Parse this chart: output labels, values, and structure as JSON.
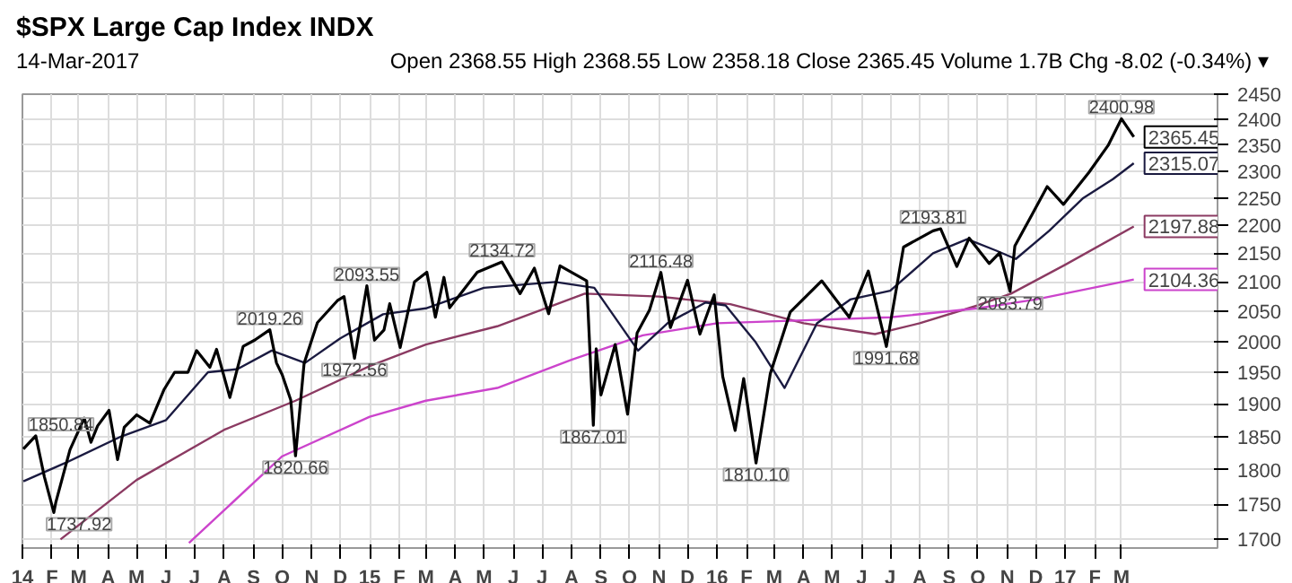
{
  "chart_data": {
    "type": "line",
    "title": "$SPX Large Cap Index INDX",
    "subtitle": "14-Mar-2017",
    "log": "y",
    "grid": true,
    "ylim": [
      1688,
      2450
    ],
    "yticks": [
      1700,
      1750,
      1800,
      1850,
      1900,
      1950,
      2000,
      2050,
      2100,
      2150,
      2200,
      2250,
      2300,
      2350,
      2400,
      2450
    ],
    "xlim": [
      "2014-01-01",
      "2017-06-10"
    ],
    "xticks": [
      {
        "value": "2014-01-01",
        "label": "14"
      },
      {
        "value": "2014-02-01",
        "label": "F"
      },
      {
        "value": "2014-03-01",
        "label": "M"
      },
      {
        "value": "2014-04-01",
        "label": "A"
      },
      {
        "value": "2014-05-01",
        "label": "M"
      },
      {
        "value": "2014-06-01",
        "label": "J"
      },
      {
        "value": "2014-07-01",
        "label": "J"
      },
      {
        "value": "2014-08-01",
        "label": "A"
      },
      {
        "value": "2014-09-01",
        "label": "S"
      },
      {
        "value": "2014-10-01",
        "label": "O"
      },
      {
        "value": "2014-11-01",
        "label": "N"
      },
      {
        "value": "2014-12-01",
        "label": "D"
      },
      {
        "value": "2015-01-01",
        "label": "15"
      },
      {
        "value": "2015-02-01",
        "label": "F"
      },
      {
        "value": "2015-03-01",
        "label": "M"
      },
      {
        "value": "2015-04-01",
        "label": "A"
      },
      {
        "value": "2015-05-01",
        "label": "M"
      },
      {
        "value": "2015-06-01",
        "label": "J"
      },
      {
        "value": "2015-07-01",
        "label": "J"
      },
      {
        "value": "2015-08-01",
        "label": "A"
      },
      {
        "value": "2015-09-01",
        "label": "S"
      },
      {
        "value": "2015-10-01",
        "label": "O"
      },
      {
        "value": "2015-11-01",
        "label": "N"
      },
      {
        "value": "2015-12-01",
        "label": "D"
      },
      {
        "value": "2016-01-01",
        "label": "16"
      },
      {
        "value": "2016-02-01",
        "label": "F"
      },
      {
        "value": "2016-03-01",
        "label": "M"
      },
      {
        "value": "2016-04-01",
        "label": "A"
      },
      {
        "value": "2016-05-01",
        "label": "M"
      },
      {
        "value": "2016-06-01",
        "label": "J"
      },
      {
        "value": "2016-07-01",
        "label": "J"
      },
      {
        "value": "2016-08-01",
        "label": "A"
      },
      {
        "value": "2016-09-01",
        "label": "S"
      },
      {
        "value": "2016-10-01",
        "label": "O"
      },
      {
        "value": "2016-11-01",
        "label": "N"
      },
      {
        "value": "2016-12-01",
        "label": "D"
      },
      {
        "value": "2017-01-01",
        "label": "17"
      },
      {
        "value": "2017-02-01",
        "label": "F"
      },
      {
        "value": "2017-03-01",
        "label": "M"
      }
    ],
    "annotations": [
      "Open 2368.55 High 2368.55 Low 2358.18 Close 2365.45 Volume 1.7B Chg -8.02 (-0.34%) ▾",
      {
        "text": "1850.84",
        "x": "2014-01-15",
        "y": 1850.84
      },
      {
        "text": "1737.92",
        "x": "2014-02-03",
        "y": 1737.92
      },
      {
        "text": "2019.26",
        "x": "2014-09-18",
        "y": 2019.26
      },
      {
        "text": "1820.66",
        "x": "2014-10-15",
        "y": 1820.66
      },
      {
        "text": "1972.56",
        "x": "2014-12-16",
        "y": 1972.56
      },
      {
        "text": "2093.55",
        "x": "2014-12-29",
        "y": 2093.55
      },
      {
        "text": "2134.72",
        "x": "2015-05-20",
        "y": 2134.72
      },
      {
        "text": "1867.01",
        "x": "2015-08-24",
        "y": 1867.01
      },
      {
        "text": "2116.48",
        "x": "2015-11-03",
        "y": 2116.48
      },
      {
        "text": "1810.10",
        "x": "2016-02-11",
        "y": 1810.1
      },
      {
        "text": "1991.68",
        "x": "2016-06-27",
        "y": 1991.68
      },
      {
        "text": "2193.81",
        "x": "2016-08-15",
        "y": 2193.81
      },
      {
        "text": "2083.79",
        "x": "2016-11-04",
        "y": 2083.79
      },
      {
        "text": "2400.98",
        "x": "2017-03-01",
        "y": 2400.98
      },
      {
        "text": "2365.45",
        "x": "2017-03-14",
        "y": 2365.45
      },
      {
        "text": "2315.07",
        "x": "2017-03-14",
        "y": 2315.07
      },
      {
        "text": "2197.88",
        "x": "2017-03-14",
        "y": 2197.88
      },
      {
        "text": "2104.36",
        "x": "2017-03-14",
        "y": 2104.36
      }
    ],
    "series": [
      {
        "color": "#8b3a62",
        "x": [
          "2014-02-10",
          "2014-05-01",
          "2014-08-01",
          "2014-10-15",
          "2015-01-01",
          "2015-03-01",
          "2015-05-15",
          "2015-08-15",
          "2015-11-01",
          "2016-01-15",
          "2016-04-01",
          "2016-06-15",
          "2016-08-01",
          "2016-10-01",
          "2016-11-05",
          "2017-01-01",
          "2017-03-14"
        ],
        "values": [
          1700,
          1785,
          1860,
          1905,
          1960,
          1995,
          2025,
          2080,
          2075,
          2062,
          2030,
          2012,
          2030,
          2060,
          2080,
          2130,
          2197.88
        ]
      },
      {
        "color": "#cc44cc",
        "x": [
          "2014-06-25",
          "2014-10-01",
          "2015-01-01",
          "2015-03-01",
          "2015-05-15",
          "2015-08-01",
          "2015-10-15",
          "2016-01-01",
          "2016-04-01",
          "2016-07-01",
          "2016-10-01",
          "2016-12-01",
          "2017-03-14"
        ],
        "values": [
          1695,
          1820,
          1880,
          1905,
          1925,
          1970,
          2010,
          2030,
          2035,
          2040,
          2055,
          2070,
          2104.36
        ]
      },
      {
        "color": "#1a1a40",
        "x": [
          "2014-01-02",
          "2014-02-15",
          "2014-04-15",
          "2014-06-01",
          "2014-07-15",
          "2014-08-15",
          "2014-09-20",
          "2014-10-25",
          "2014-12-01",
          "2015-01-15",
          "2015-03-01",
          "2015-05-01",
          "2015-07-15",
          "2015-08-25",
          "2015-09-20",
          "2015-10-10",
          "2015-11-10",
          "2015-12-20",
          "2016-01-10",
          "2016-02-10",
          "2016-03-12",
          "2016-04-15",
          "2016-05-20",
          "2016-07-01",
          "2016-08-15",
          "2016-09-20",
          "2016-10-20",
          "2016-11-10",
          "2016-12-15",
          "2017-01-20",
          "2017-02-20",
          "2017-03-14"
        ],
        "values": [
          1783,
          1810,
          1850,
          1875,
          1950,
          1955,
          1985,
          1965,
          2005,
          2045,
          2055,
          2090,
          2100,
          2090,
          2030,
          1985,
          2030,
          2065,
          2060,
          2000,
          1925,
          2030,
          2070,
          2085,
          2150,
          2175,
          2155,
          2140,
          2190,
          2250,
          2285,
          2315.07
        ]
      },
      {
        "color": "#000000",
        "x": [
          "2014-01-02",
          "2014-01-15",
          "2014-01-24",
          "2014-02-03",
          "2014-02-05",
          "2014-02-20",
          "2014-03-07",
          "2014-03-14",
          "2014-03-21",
          "2014-04-02",
          "2014-04-11",
          "2014-04-18",
          "2014-05-01",
          "2014-05-15",
          "2014-05-30",
          "2014-06-10",
          "2014-06-24",
          "2014-07-03",
          "2014-07-17",
          "2014-07-24",
          "2014-08-07",
          "2014-08-21",
          "2014-09-02",
          "2014-09-18",
          "2014-09-25",
          "2014-10-01",
          "2014-10-10",
          "2014-10-15",
          "2014-10-24",
          "2014-11-07",
          "2014-11-28",
          "2014-12-05",
          "2014-12-16",
          "2014-12-29",
          "2015-01-06",
          "2015-01-16",
          "2015-01-22",
          "2015-02-02",
          "2015-02-17",
          "2015-03-02",
          "2015-03-11",
          "2015-03-20",
          "2015-03-26",
          "2015-04-24",
          "2015-05-20",
          "2015-06-08",
          "2015-06-23",
          "2015-07-08",
          "2015-07-20",
          "2015-08-17",
          "2015-08-24",
          "2015-08-27",
          "2015-09-01",
          "2015-09-16",
          "2015-09-29",
          "2015-10-09",
          "2015-10-22",
          "2015-11-03",
          "2015-11-13",
          "2015-12-01",
          "2015-12-14",
          "2015-12-29",
          "2016-01-07",
          "2016-01-20",
          "2016-01-29",
          "2016-02-11",
          "2016-02-26",
          "2016-03-18",
          "2016-04-20",
          "2016-05-19",
          "2016-06-08",
          "2016-06-27",
          "2016-07-15",
          "2016-08-15",
          "2016-08-23",
          "2016-09-09",
          "2016-09-22",
          "2016-10-13",
          "2016-10-24",
          "2016-11-04",
          "2016-11-09",
          "2016-11-25",
          "2016-12-13",
          "2016-12-30",
          "2017-01-26",
          "2017-02-15",
          "2017-03-01",
          "2017-03-14"
        ],
        "values": [
          1831,
          1850.84,
          1790,
          1737.92,
          1752,
          1830,
          1878,
          1841,
          1866,
          1890,
          1815,
          1864,
          1883,
          1870,
          1923,
          1950,
          1950,
          1985,
          1958,
          1987,
          1910,
          1992,
          2002,
          2019.26,
          1965,
          1946,
          1906,
          1820.66,
          1964,
          2031,
          2068,
          2075,
          1972.56,
          2093.55,
          2002,
          2019,
          2063,
          1990,
          2100,
          2117,
          2040,
          2108,
          2056,
          2117,
          2134.72,
          2080,
          2124,
          2046,
          2128,
          2102,
          1867.01,
          1988,
          1914,
          1995,
          1884,
          2014,
          2052,
          2116.48,
          2023,
          2103,
          2012,
          2078,
          1943,
          1859,
          1940,
          1810.1,
          1948,
          2049,
          2102,
          2040,
          2119,
          1991.68,
          2161,
          2190,
          2193.81,
          2127,
          2177,
          2132,
          2151,
          2083.79,
          2163,
          2213,
          2271,
          2238,
          2298,
          2349,
          2400.98,
          2365.45
        ]
      }
    ]
  }
}
